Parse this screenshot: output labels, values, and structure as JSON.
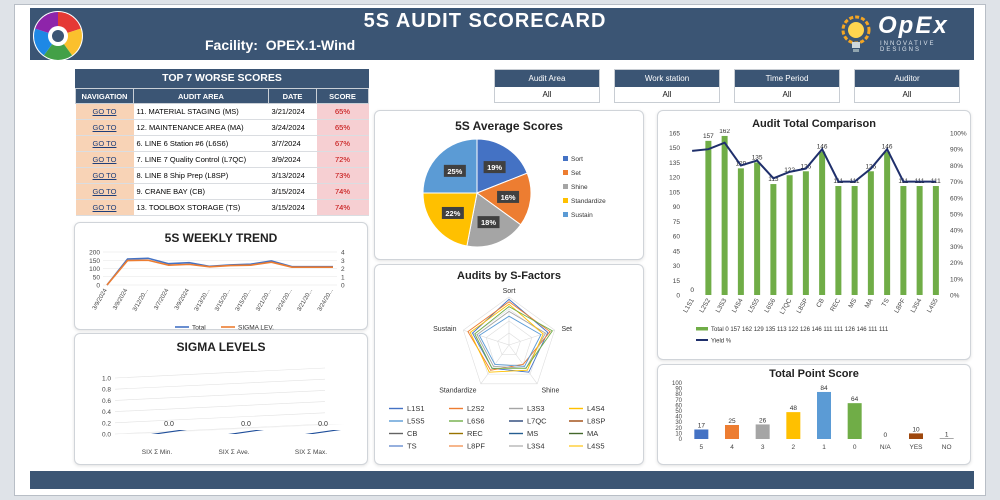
{
  "header": {
    "title": "5S AUDIT SCORECARD",
    "facility_label": "Facility:",
    "facility_value": "OPEX.1-Wind",
    "brand": "OpEx",
    "brand_sub": "INNOVATIVE DESIGNS"
  },
  "worse_table": {
    "title": "TOP 7 WORSE SCORES",
    "columns": [
      "NAVIGATION",
      "AUDIT AREA",
      "DATE",
      "SCORE"
    ],
    "rows": [
      {
        "nav": "GO TO",
        "area": "11. MATERIAL STAGING  (MS)",
        "date": "3/21/2024",
        "score": "65%"
      },
      {
        "nav": "GO TO",
        "area": "12. MAINTENANCE AREA  (MA)",
        "date": "3/24/2024",
        "score": "65%"
      },
      {
        "nav": "GO TO",
        "area": "6. LINE 6 Station #6 (L6S6)",
        "date": "3/7/2024",
        "score": "67%"
      },
      {
        "nav": "GO TO",
        "area": "7. LINE 7 Quality Control (L7QC)",
        "date": "3/9/2024",
        "score": "72%"
      },
      {
        "nav": "GO TO",
        "area": "8. LINE 8 Ship Prep (L8SP)",
        "date": "3/13/2024",
        "score": "73%"
      },
      {
        "nav": "GO TO",
        "area": "9. CRANE BAY  (CB)",
        "date": "3/15/2024",
        "score": "74%"
      },
      {
        "nav": "GO TO",
        "area": "13. TOOLBOX STORAGE  (TS)",
        "date": "3/15/2024",
        "score": "74%"
      }
    ]
  },
  "filters": [
    {
      "label": "Audit Area",
      "value": "All"
    },
    {
      "label": "Work station",
      "value": "All"
    },
    {
      "label": "Time Period",
      "value": "All"
    },
    {
      "label": "Auditor",
      "value": "All"
    }
  ],
  "colors": {
    "navy": "#3b5574",
    "green": "#70ad47",
    "blue": "#4472c4",
    "orange": "#ed7d31",
    "gray": "#a5a5a5",
    "gold": "#ffc000",
    "lightblue": "#5b9bd5",
    "darknavy": "#1f2f6b"
  },
  "weekly_trend": {
    "title": "5S WEEKLY TREND",
    "legend": [
      "Total",
      "SIGMA LEV."
    ]
  },
  "sigma": {
    "title": "SIGMA LEVELS"
  },
  "pie": {
    "title": "5S Average Scores"
  },
  "radar": {
    "title": "Audits by S-Factors",
    "axes": [
      "Sort",
      "Set",
      "Shine",
      "Standardize",
      "Sustain"
    ],
    "legend": [
      "L1S1",
      "L2S2",
      "L3S3",
      "L4S4",
      "L5S5",
      "L6S6",
      "L7QC",
      "L8SP",
      "CB",
      "REC",
      "MS",
      "MA",
      "TS",
      "L8PF",
      "L3S4",
      "L4S5"
    ]
  },
  "comparison": {
    "title": "Audit Total Comparison",
    "legend": [
      "Total 0 157 162 129 135 113 122 126 146 111 111 126 146 111 111",
      "Yield %"
    ]
  },
  "point_score": {
    "title": "Total Point Score"
  },
  "chart_data": [
    {
      "type": "line",
      "title": "5S WEEKLY TREND",
      "categories": [
        "3/9/2024",
        "3/9/2024",
        "3/12/20...",
        "3/7/2024",
        "3/9/2024",
        "3/13/20...",
        "3/15/20...",
        "3/15/20...",
        "3/21/20...",
        "3/24/20...",
        "3/21/20...",
        "3/24/20..."
      ],
      "series": [
        {
          "name": "Total",
          "values": [
            0,
            157,
            162,
            129,
            135,
            113,
            122,
            126,
            146,
            111,
            111,
            111
          ]
        },
        {
          "name": "SIGMA LEV.",
          "values": [
            0,
            148,
            150,
            120,
            125,
            110,
            118,
            120,
            138,
            108,
            108,
            108
          ]
        }
      ],
      "ylim": [
        0,
        200
      ],
      "yticks": [
        0,
        50,
        100,
        150,
        200
      ],
      "y2ticks": [
        0,
        1,
        2,
        3,
        4
      ]
    },
    {
      "type": "bar",
      "title": "SIGMA LEVELS",
      "categories": [
        "SIX Σ Min.",
        "SIX Σ Ave.",
        "SIX Σ Max."
      ],
      "values": [
        0.0,
        0.0,
        0.0
      ],
      "data_labels": [
        "0.0",
        "0.0",
        "0.0"
      ],
      "ylim": [
        0,
        1.0
      ],
      "yticks": [
        "1.0",
        "0.8",
        "0.6",
        "0.4",
        "0.2",
        "0.0"
      ]
    },
    {
      "type": "pie",
      "title": "5S Average Scores",
      "categories": [
        "Sort",
        "Set",
        "Shine",
        "Standardize",
        "Sustain"
      ],
      "values": [
        19,
        16,
        18,
        22,
        25
      ],
      "data_labels": [
        "19%",
        "16%",
        "18%",
        "22%",
        "25%"
      ]
    },
    {
      "type": "bar",
      "title": "Audit Total Comparison",
      "categories": [
        "L1S1",
        "L2S2",
        "L3S3",
        "L4S4",
        "L5S5",
        "L6S6",
        "L7QC",
        "L8SP",
        "CB",
        "REC",
        "MS",
        "MA",
        "TS",
        "L8PF",
        "L3S4",
        "L4S5"
      ],
      "series": [
        {
          "name": "Total",
          "values": [
            0,
            157,
            162,
            129,
            135,
            113,
            122,
            126,
            146,
            111,
            111,
            126,
            146,
            111,
            111,
            111
          ]
        },
        {
          "name": "Yield %",
          "values": [
            89,
            90,
            94,
            80,
            83,
            72,
            76,
            78,
            90,
            70,
            70,
            78,
            90,
            70,
            70,
            70
          ]
        }
      ],
      "data_labels": [
        "0",
        "157",
        "162",
        "129",
        "135",
        "113",
        "122",
        "126",
        "146",
        "111",
        "111",
        "126",
        "146",
        "111",
        "111",
        "111"
      ],
      "ylim": [
        0,
        165
      ],
      "yticks": [
        0,
        15,
        30,
        45,
        60,
        75,
        90,
        105,
        120,
        135,
        150,
        165
      ],
      "y2ticks": [
        "0%",
        "10%",
        "20%",
        "30%",
        "40%",
        "50%",
        "60%",
        "70%",
        "80%",
        "90%",
        "100%"
      ]
    },
    {
      "type": "bar",
      "title": "Total Point Score",
      "categories": [
        "5",
        "4",
        "3",
        "2",
        "1",
        "0",
        "N/A",
        "YES",
        "NO"
      ],
      "values": [
        17,
        25,
        26,
        48,
        84,
        64,
        0,
        10,
        1
      ],
      "colors": [
        "#4472c4",
        "#ed7d31",
        "#a5a5a5",
        "#ffc000",
        "#5b9bd5",
        "#70ad47",
        "#264478",
        "#9e480e",
        "#636363"
      ],
      "ylim": [
        0,
        100
      ],
      "yticks": [
        0,
        10,
        20,
        30,
        40,
        50,
        60,
        70,
        80,
        90,
        100
      ]
    }
  ]
}
